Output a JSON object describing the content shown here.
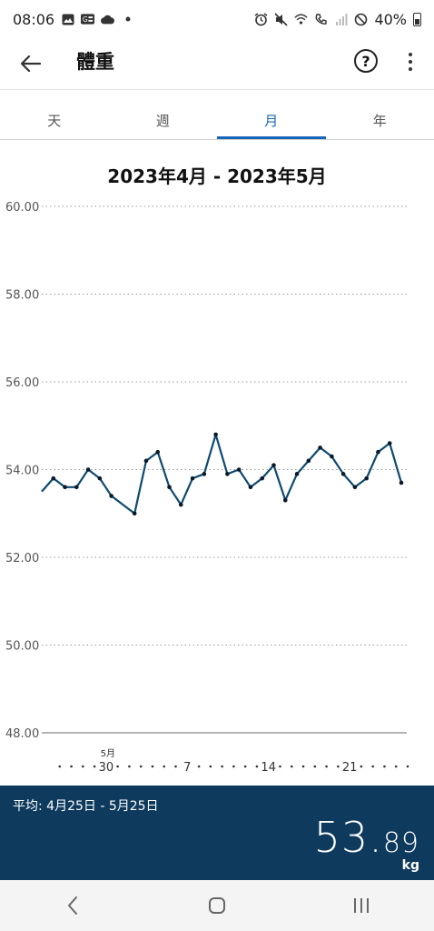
{
  "status_bar": {
    "time": "08:06",
    "battery": "40%",
    "left_icons": [
      "image-icon",
      "news-icon",
      "cloud-icon",
      "dot-icon"
    ],
    "right_icons": [
      "alarm-icon",
      "mute-icon",
      "wifi-icon",
      "wifi-call-icon",
      "signal-icon",
      "block-icon",
      "battery-icon"
    ]
  },
  "app_bar": {
    "title": "體重",
    "help_label": "?"
  },
  "tabs": [
    {
      "label": "天",
      "active": false
    },
    {
      "label": "週",
      "active": false
    },
    {
      "label": "月",
      "active": true
    },
    {
      "label": "年",
      "active": false
    }
  ],
  "chart_data": {
    "type": "line",
    "title": "2023年4月 - 2023年5月",
    "xlabel": "",
    "ylabel": "",
    "ylim": [
      48,
      60
    ],
    "ytick_labels": [
      "60.00",
      "58.00",
      "56.00",
      "54.00",
      "52.00",
      "50.00",
      "48.00"
    ],
    "x_tick_labels": [
      {
        "day": 5,
        "label": "30",
        "month_label": "5月"
      },
      {
        "day": 12,
        "label": "7",
        "month_label": ""
      },
      {
        "day": 19,
        "label": "14",
        "month_label": ""
      },
      {
        "day": 26,
        "label": "21",
        "month_label": ""
      }
    ],
    "day_count": 31,
    "grid": true,
    "color": "#0e4a70",
    "series": [
      {
        "name": "",
        "x": [
          0,
          1,
          2,
          3,
          4,
          5,
          6,
          8,
          9,
          10,
          11,
          12,
          13,
          14,
          15,
          16,
          17,
          18,
          19,
          20,
          21,
          22,
          23,
          24,
          25,
          26,
          27,
          28,
          29,
          30,
          31
        ],
        "values": [
          53.5,
          53.8,
          53.6,
          53.6,
          54.0,
          53.8,
          53.4,
          53.0,
          54.2,
          54.4,
          53.6,
          53.2,
          53.8,
          53.9,
          54.8,
          53.9,
          54.0,
          53.6,
          53.8,
          54.1,
          53.3,
          53.9,
          54.2,
          54.5,
          54.3,
          53.9,
          53.6,
          53.8,
          54.4,
          54.6,
          53.7
        ]
      }
    ]
  },
  "summary": {
    "label": "平均: 4月25日 - 5月25日",
    "value_int": "53.",
    "value_dec": "89",
    "unit": "kg"
  },
  "nav": {
    "back_icon": "nav-back-icon",
    "home_icon": "nav-home-icon",
    "recents_icon": "nav-recents-icon"
  }
}
